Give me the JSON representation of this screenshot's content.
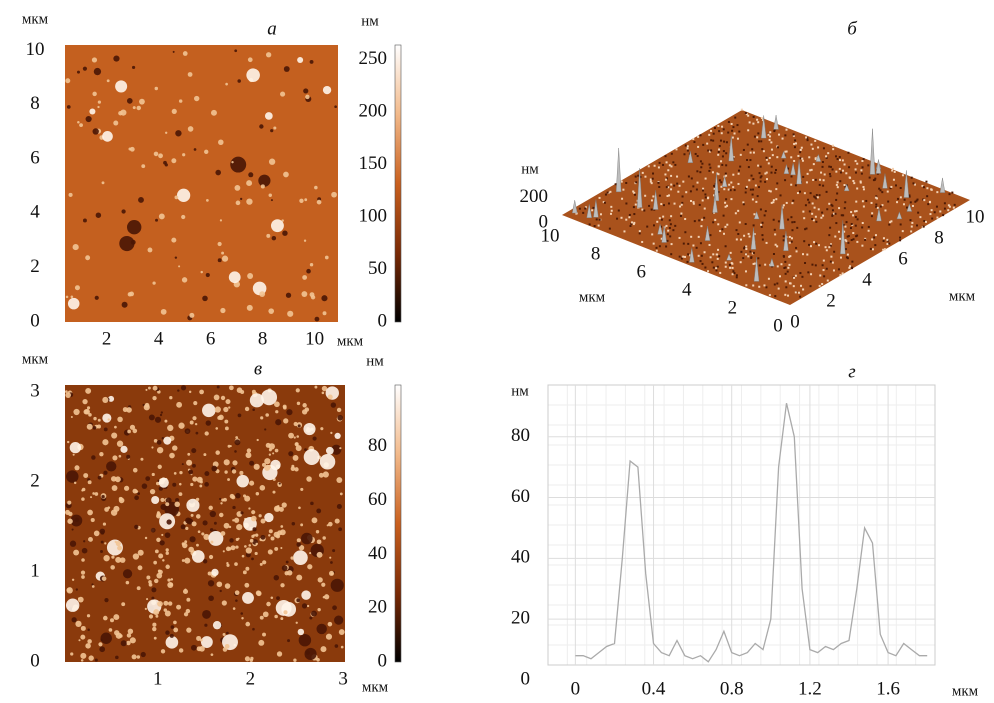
{
  "chart_data": [
    {
      "type": "image",
      "title": "а",
      "x_unit": "мкм",
      "y_unit": "мкм",
      "colorbar_unit": "нм",
      "xlim": [
        0.4,
        10.9
      ],
      "xticks": [
        2,
        4,
        6,
        8,
        10
      ],
      "ylim": [
        0,
        10.2
      ],
      "yticks": [
        0,
        2,
        4,
        6,
        8,
        10
      ],
      "clim": [
        0,
        264
      ],
      "cticks": [
        0,
        50,
        100,
        150,
        200,
        250
      ]
    },
    {
      "type": "surface3d",
      "title": "б",
      "x_unit": "мкм",
      "y_unit": "мкм",
      "z_unit": "нм",
      "xlim": [
        0,
        10
      ],
      "xticks": [
        10,
        8,
        6,
        4,
        2,
        0
      ],
      "ylim": [
        0,
        10
      ],
      "yticks": [
        0,
        2,
        4,
        6,
        8,
        10
      ],
      "zlim": [
        0,
        250
      ],
      "zticks": [
        0,
        200
      ]
    },
    {
      "type": "image",
      "title": "в",
      "x_unit": "мкм",
      "y_unit": "мкм",
      "colorbar_unit": "нм",
      "xlim": [
        0,
        3.02
      ],
      "xticks": [
        1,
        2,
        3
      ],
      "ylim": [
        0,
        3.08
      ],
      "yticks": [
        0,
        1,
        2,
        3
      ],
      "clim": [
        0,
        103
      ],
      "cticks": [
        0,
        20,
        40,
        60,
        80
      ]
    },
    {
      "type": "line",
      "title": "г",
      "x_unit": "мкм",
      "y_unit": "нм",
      "color": "#aaaaaa",
      "grid": true,
      "xlim": [
        -0.14,
        1.84
      ],
      "xticks": [
        0,
        0.4,
        0.8,
        1.2,
        1.6
      ],
      "ylim": [
        0,
        97
      ],
      "yticks": [
        0,
        20,
        40,
        60,
        80
      ],
      "x": [
        0,
        0.04,
        0.08,
        0.12,
        0.16,
        0.2,
        0.24,
        0.28,
        0.32,
        0.36,
        0.4,
        0.44,
        0.48,
        0.52,
        0.56,
        0.6,
        0.64,
        0.68,
        0.72,
        0.76,
        0.8,
        0.84,
        0.88,
        0.92,
        0.96,
        1.0,
        1.04,
        1.08,
        1.12,
        1.16,
        1.2,
        1.24,
        1.28,
        1.32,
        1.36,
        1.4,
        1.44,
        1.48,
        1.52,
        1.56,
        1.6,
        1.64,
        1.68,
        1.72,
        1.76,
        1.8
      ],
      "values": [
        8,
        8,
        7,
        9,
        11,
        12,
        40,
        72,
        70,
        35,
        12,
        9,
        8,
        13,
        8,
        7,
        8,
        6,
        10,
        16,
        9,
        8,
        9,
        12,
        10,
        20,
        70,
        91,
        80,
        30,
        10,
        9,
        11,
        10,
        12,
        13,
        30,
        50,
        45,
        15,
        9,
        8,
        12,
        10,
        8,
        8
      ]
    }
  ]
}
